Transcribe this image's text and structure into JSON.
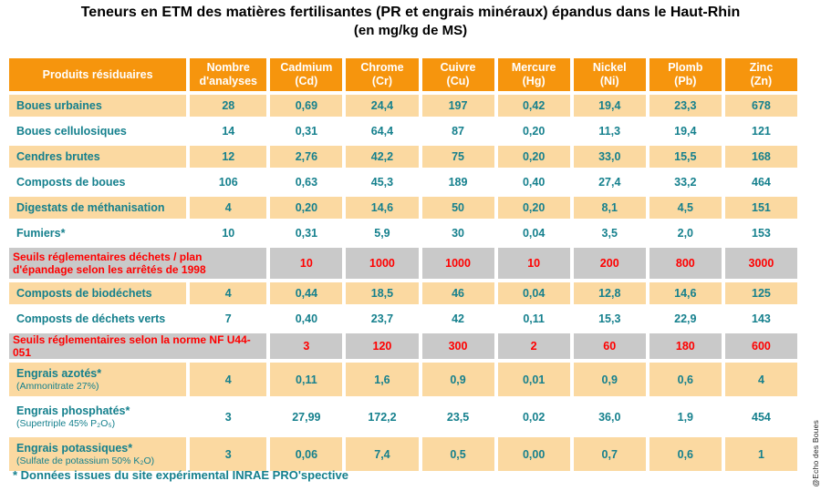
{
  "title": {
    "line1": "Teneurs en ETM des matières fertilisantes (PR et engrais minéraux) épandus dans le Haut-Rhin",
    "line2": "(en mg/kg de MS)"
  },
  "footnote": "* Données issues du site expérimental INRAE PRO'spective",
  "credit": "@Echo des Boues",
  "colors": {
    "header_orange": "#F6950D",
    "row_orange": "#FBD9A1",
    "teal_text": "#15808D",
    "threshold_grey": "#C9C9C9",
    "threshold_red": "#FF0000"
  },
  "chart_data": {
    "type": "table",
    "title": "Teneurs en ETM des matières fertilisantes (PR et engrais minéraux) épandus dans le Haut-Rhin",
    "units": "mg/kg de MS",
    "columns": [
      "Produits résiduaires",
      "Nombre\nd'analyses",
      "Cadmium\n(Cd)",
      "Chrome\n(Cr)",
      "Cuivre\n(Cu)",
      "Mercure\n(Hg)",
      "Nickel\n(Ni)",
      "Plomb\n(Pb)",
      "Zinc\n(Zn)"
    ],
    "rows": [
      {
        "kind": "data",
        "shade": "orange",
        "label": "Boues urbaines",
        "sub": "",
        "values": [
          "28",
          "0,69",
          "24,4",
          "197",
          "0,42",
          "19,4",
          "23,3",
          "678"
        ]
      },
      {
        "kind": "data",
        "shade": "white",
        "label": "Boues cellulosiques",
        "sub": "",
        "values": [
          "14",
          "0,31",
          "64,4",
          "87",
          "0,20",
          "11,3",
          "19,4",
          "121"
        ]
      },
      {
        "kind": "data",
        "shade": "orange",
        "label": "Cendres brutes",
        "sub": "",
        "values": [
          "12",
          "2,76",
          "42,2",
          "75",
          "0,20",
          "33,0",
          "15,5",
          "168"
        ]
      },
      {
        "kind": "data",
        "shade": "white",
        "label": "Composts de boues",
        "sub": "",
        "values": [
          "106",
          "0,63",
          "45,3",
          "189",
          "0,40",
          "27,4",
          "33,2",
          "464"
        ]
      },
      {
        "kind": "data",
        "shade": "orange",
        "label": "Digestats de méthanisation",
        "sub": "",
        "values": [
          "4",
          "0,20",
          "14,6",
          "50",
          "0,20",
          "8,1",
          "4,5",
          "151"
        ]
      },
      {
        "kind": "data",
        "shade": "white",
        "label": "Fumiers*",
        "sub": "",
        "values": [
          "10",
          "0,31",
          "5,9",
          "30",
          "0,04",
          "3,5",
          "2,0",
          "153"
        ]
      },
      {
        "kind": "threshold",
        "label": "Seuils réglementaires déchets / plan d'épandage selon les arrêtés de 1998",
        "values": [
          "10",
          "1000",
          "1000",
          "10",
          "200",
          "800",
          "3000"
        ]
      },
      {
        "kind": "data",
        "shade": "orange",
        "label": "Composts de biodéchets",
        "sub": "",
        "values": [
          "4",
          "0,44",
          "18,5",
          "46",
          "0,04",
          "12,8",
          "14,6",
          "125"
        ]
      },
      {
        "kind": "data",
        "shade": "white",
        "label": "Composts de déchets verts",
        "sub": "",
        "values": [
          "7",
          "0,40",
          "23,7",
          "42",
          "0,11",
          "15,3",
          "22,9",
          "143"
        ]
      },
      {
        "kind": "threshold",
        "label": "Seuils réglementaires selon la norme NF U44-051",
        "values": [
          "3",
          "120",
          "300",
          "2",
          "60",
          "180",
          "600"
        ]
      },
      {
        "kind": "data",
        "shade": "orange",
        "label": "Engrais azotés*",
        "sub": "(Ammonitrate 27%)",
        "values": [
          "4",
          "0,11",
          "1,6",
          "0,9",
          "0,01",
          "0,9",
          "0,6",
          "4"
        ]
      },
      {
        "kind": "data",
        "shade": "white",
        "label": "Engrais phosphatés*",
        "sub": "(Supertriple 45% P₂O₅)",
        "values": [
          "3",
          "27,99",
          "172,2",
          "23,5",
          "0,02",
          "36,0",
          "1,9",
          "454"
        ]
      },
      {
        "kind": "data",
        "shade": "orange",
        "label": "Engrais potassiques*",
        "sub": "(Sulfate de potassium 50% K₂O)",
        "values": [
          "3",
          "0,06",
          "7,4",
          "0,5",
          "0,00",
          "0,7",
          "0,6",
          "1"
        ]
      }
    ]
  }
}
